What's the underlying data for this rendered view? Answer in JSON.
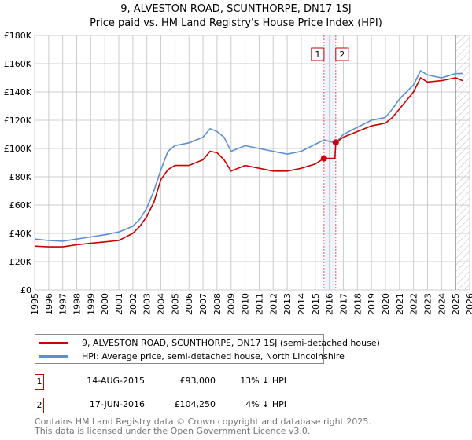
{
  "chart_data": {
    "type": "line",
    "title": "9, ALVESTON ROAD, SCUNTHORPE, DN17 1SJ",
    "subtitle": "Price paid vs. HM Land Registry's House Price Index (HPI)",
    "xlim": [
      1995,
      2026
    ],
    "ylim": [
      0,
      180000
    ],
    "yticks": [
      0,
      20000,
      40000,
      60000,
      80000,
      100000,
      120000,
      140000,
      160000,
      180000
    ],
    "ytick_labels": [
      "£0",
      "£20K",
      "£40K",
      "£60K",
      "£80K",
      "£100K",
      "£120K",
      "£140K",
      "£160K",
      "£180K"
    ],
    "xticks": [
      "1995",
      "1996",
      "1997",
      "1998",
      "1999",
      "2000",
      "2001",
      "2002",
      "2003",
      "2004",
      "2005",
      "2006",
      "2007",
      "2008",
      "2009",
      "2010",
      "2011",
      "2012",
      "2013",
      "2014",
      "2015",
      "2016",
      "2017",
      "2018",
      "2019",
      "2020",
      "2021",
      "2022",
      "2023",
      "2024",
      "2025",
      "2026"
    ],
    "grid": true,
    "series": [
      {
        "name": "9, ALVESTON ROAD, SCUNTHORPE, DN17 1SJ (semi-detached house)",
        "color": "#cc0000",
        "x": [
          1995,
          1996,
          1997,
          1998,
          1999,
          2000,
          2001,
          2002,
          2002.5,
          2003,
          2003.5,
          2004,
          2004.5,
          2005,
          2006,
          2007,
          2007.5,
          2008,
          2008.5,
          2009,
          2010,
          2011,
          2012,
          2013,
          2014,
          2015,
          2015.62,
          2016.4,
          2016.46,
          2017,
          2018,
          2019,
          2020,
          2020.5,
          2021,
          2022,
          2022.5,
          2023,
          2024,
          2025,
          2025.5
        ],
        "y": [
          31000,
          30500,
          30500,
          32000,
          33000,
          34000,
          35000,
          40000,
          45000,
          52000,
          62000,
          78000,
          85000,
          88000,
          88000,
          92000,
          98000,
          97000,
          92000,
          84000,
          88000,
          86000,
          84000,
          84000,
          86000,
          89000,
          93000,
          93000,
          104250,
          108000,
          112000,
          116000,
          118000,
          122000,
          128000,
          140000,
          150000,
          147000,
          148000,
          150000,
          148000
        ]
      },
      {
        "name": "HPI: Average price, semi-detached house, North Lincolnshire",
        "color": "#5b8fd0",
        "x": [
          1995,
          1996,
          1997,
          1998,
          1999,
          2000,
          2001,
          2002,
          2002.5,
          2003,
          2003.5,
          2004,
          2004.5,
          2005,
          2006,
          2007,
          2007.5,
          2008,
          2008.5,
          2009,
          2010,
          2011,
          2012,
          2013,
          2014,
          2015,
          2015.62,
          2016.46,
          2017,
          2018,
          2019,
          2020,
          2020.5,
          2021,
          2022,
          2022.5,
          2023,
          2024,
          2025,
          2025.5
        ],
        "y": [
          36000,
          35000,
          34500,
          36000,
          37500,
          39000,
          41000,
          45000,
          50000,
          58000,
          70000,
          85000,
          98000,
          102000,
          104000,
          108000,
          114000,
          112000,
          108000,
          98000,
          102000,
          100000,
          98000,
          96000,
          98000,
          103000,
          106000,
          104000,
          110000,
          115000,
          120000,
          122000,
          128000,
          135000,
          145000,
          155000,
          152000,
          150000,
          153000,
          153000
        ]
      }
    ],
    "transactions": [
      {
        "id": "1",
        "date": "14-AUG-2015",
        "x": 2015.62,
        "price": "£93,000",
        "value": 93000,
        "hpi": "13% ↓ HPI"
      },
      {
        "id": "2",
        "date": "17-JUN-2016",
        "x": 2016.46,
        "price": "£104,250",
        "value": 104250,
        "hpi": "4% ↓ HPI"
      }
    ],
    "forecast_start": 2025.0
  },
  "footer": [
    "Contains HM Land Registry data © Crown copyright and database right 2025.",
    "This data is licensed under the Open Government Licence v3.0."
  ]
}
